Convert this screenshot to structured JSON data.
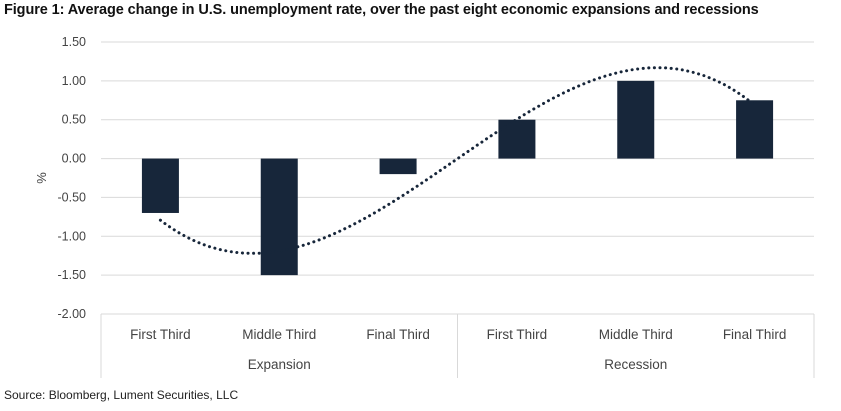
{
  "title": "Figure 1: Average change in U.S. unemployment rate, over the past eight economic expansions and recessions",
  "source": "Source: Bloomberg, Lument Securities, LLC",
  "chart_data": {
    "type": "bar",
    "ylabel": "%",
    "ylim": [
      -2.0,
      1.5
    ],
    "y_ticks": [
      1.5,
      1.0,
      0.5,
      0.0,
      -0.5,
      -1.0,
      -1.5,
      -2.0
    ],
    "y_tick_labels": [
      "1.50",
      "1.00",
      "0.50",
      "0.00",
      "-0.50",
      "-1.00",
      "-1.50",
      "-2.00"
    ],
    "categories": [
      "First Third",
      "Middle Third",
      "Final Third",
      "First Third",
      "Middle Third",
      "Final Third"
    ],
    "groups": [
      {
        "label": "Expansion",
        "categories": [
          "First Third",
          "Middle Third",
          "Final Third"
        ]
      },
      {
        "label": "Recession",
        "categories": [
          "First Third",
          "Middle Third",
          "Final Third"
        ]
      }
    ],
    "values": [
      -0.7,
      -1.5,
      -0.2,
      0.5,
      1.0,
      0.75
    ],
    "bar_color": "#17263a",
    "grid": true,
    "trendline": {
      "style": "dotted",
      "type": "polynomial",
      "color": "#17263a"
    }
  }
}
